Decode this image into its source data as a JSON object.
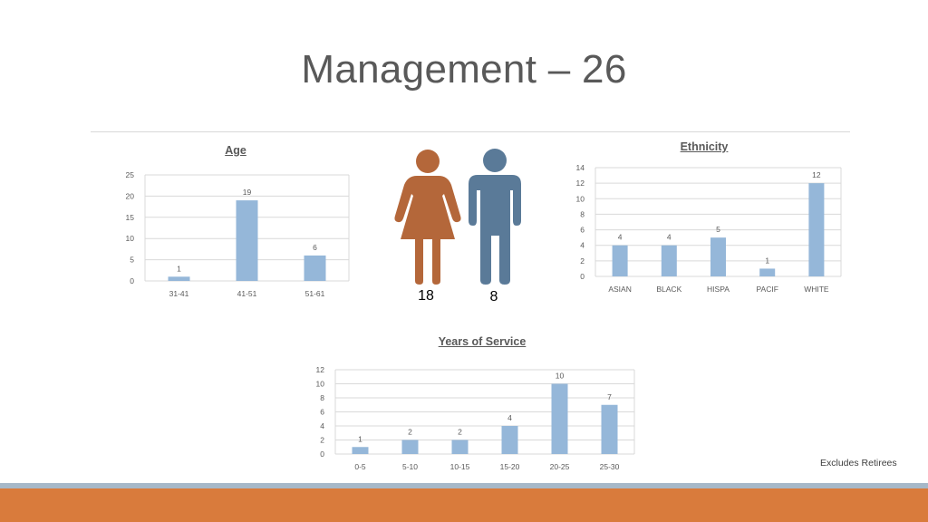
{
  "slide": {
    "title": "Management – 26",
    "note": "Excludes Retirees"
  },
  "gender": {
    "female_count": "18",
    "male_count": "8",
    "female_color": "#b4673a",
    "male_color": "#5a7a98"
  },
  "colors": {
    "bar": "#95b7d9",
    "grid": "#d9d9d9",
    "accent_orange": "#d97b3c",
    "accent_gray": "#a6b8c8"
  },
  "chart_data": [
    {
      "id": "age",
      "type": "bar",
      "title": "Age",
      "categories": [
        "31-41",
        "41-51",
        "51-61"
      ],
      "values": [
        1,
        19,
        6
      ],
      "ylim": [
        0,
        25
      ],
      "yticks": [
        0,
        5,
        10,
        15,
        20,
        25
      ],
      "grid": true
    },
    {
      "id": "ethnicity",
      "type": "bar",
      "title": "Ethnicity",
      "categories": [
        "ASIAN",
        "BLACK",
        "HISPA",
        "PACIF",
        "WHITE"
      ],
      "values": [
        4,
        4,
        5,
        1,
        12
      ],
      "ylim": [
        0,
        14
      ],
      "yticks": [
        0,
        2,
        4,
        6,
        8,
        10,
        12,
        14
      ],
      "grid": true
    },
    {
      "id": "service",
      "type": "bar",
      "title": "Years of Service",
      "categories": [
        "0-5",
        "5-10",
        "10-15",
        "15-20",
        "20-25",
        "25-30"
      ],
      "values": [
        1,
        2,
        2,
        4,
        10,
        7
      ],
      "ylim": [
        0,
        12
      ],
      "yticks": [
        0,
        2,
        4,
        6,
        8,
        10,
        12
      ],
      "grid": true
    }
  ]
}
